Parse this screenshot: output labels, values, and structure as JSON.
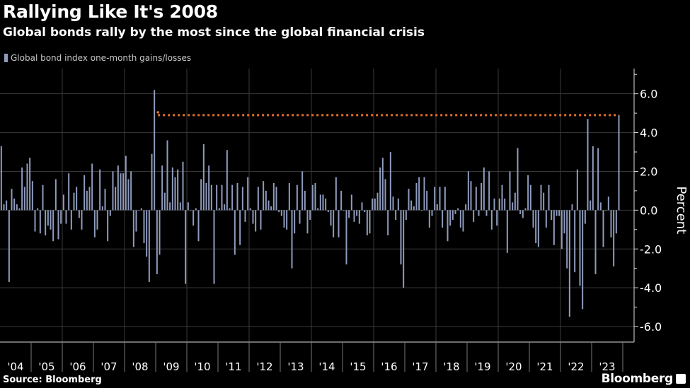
{
  "header": {
    "title": "Rallying Like It's 2008",
    "subtitle": "Global bonds rally by the most since the global financial crisis"
  },
  "footer": {
    "source": "Source: Bloomberg",
    "brand": "Bloomberg"
  },
  "colors": {
    "background": "#000000",
    "bars": "#8f9bbd",
    "reference_line": "#e8702a",
    "grid": "#3a3a3a"
  },
  "chart_data": {
    "type": "bar",
    "legend": [
      "Global bond index one-month gains/losses"
    ],
    "legend_placement": "top-left",
    "ylabel": "Percent",
    "ylim": [
      -6.8,
      7.3
    ],
    "yticks": [
      "6.0",
      "4.0",
      "2.0",
      "0.0",
      "-2.0",
      "-4.0",
      "-6.0"
    ],
    "ytick_values": [
      6,
      4,
      2,
      0,
      -2,
      -4,
      -6
    ],
    "y_axis_side": "right",
    "grid": true,
    "x_tick_labels": [
      "'04",
      "'05",
      "'06",
      "'07",
      "'08",
      "'09",
      "'10",
      "'11",
      "'12",
      "'13",
      "'14",
      "'15",
      "'16",
      "'17",
      "'18",
      "'19",
      "'20",
      "'21",
      "'22",
      "'23"
    ],
    "frequency": "monthly",
    "values_by_year": {
      "2004": [
        3.3,
        0.3,
        0.5,
        -3.7,
        1.1,
        0.6,
        0.3,
        0.1,
        2.2,
        1.2,
        2.4,
        2.7
      ],
      "2005": [
        1.5,
        -1.1,
        0.1,
        -1.2,
        1.3,
        -1.3,
        -0.8,
        -1.0,
        -1.6,
        1.6,
        -1.5,
        -0.7
      ],
      "2006": [
        0.8,
        -0.7,
        1.9,
        -1.0,
        0.9,
        1.2,
        -0.4,
        -1.0,
        1.8,
        1.0,
        1.2,
        2.4
      ],
      "2007": [
        -1.4,
        -1.0,
        2.1,
        0.2,
        1.1,
        -1.6,
        -0.3,
        2.0,
        1.2,
        2.3,
        1.9,
        1.9
      ],
      "2008": [
        2.8,
        1.6,
        2.0,
        -1.9,
        -1.1,
        0.0,
        0.1,
        -1.7,
        -2.4,
        -3.7,
        2.9,
        6.2
      ],
      "2009": [
        -3.3,
        -2.3,
        2.3,
        0.9,
        3.6,
        0.4,
        2.2,
        1.7,
        2.1,
        0.4,
        2.5,
        -3.8
      ],
      "2010": [
        0.4,
        0.0,
        -0.8,
        0.1,
        -1.6,
        1.6,
        3.4,
        1.4,
        2.3,
        1.3,
        -3.8,
        1.3
      ],
      "2011": [
        0.1,
        1.3,
        0.3,
        3.1,
        0.1,
        1.3,
        -2.3,
        1.4,
        -1.8,
        1.2,
        -0.6,
        1.7
      ],
      "2012": [
        0.1,
        -0.7,
        -1.1,
        1.2,
        -1.0,
        1.5,
        1.0,
        0.5,
        0.2,
        1.4,
        1.2,
        -0.1
      ],
      "2013": [
        -0.3,
        -0.9,
        -1.0,
        1.4,
        -3.0,
        -1.2,
        1.3,
        -0.7,
        2.0,
        1.0,
        -1.2,
        -0.5
      ],
      "2014": [
        1.3,
        1.4,
        0.1,
        0.8,
        0.8,
        0.6,
        -0.1,
        -0.8,
        -1.4,
        1.7,
        -1.4,
        1.0
      ],
      "2015": [
        0.0,
        -2.8,
        -0.4,
        0.8,
        -0.6,
        -0.3,
        -0.7,
        0.4,
        -0.1,
        -1.3,
        -1.2,
        0.6
      ],
      "2016": [
        0.6,
        0.9,
        2.2,
        2.7,
        1.6,
        -1.3,
        3.0,
        0.7,
        -0.5,
        0.6,
        -2.8,
        -4.0
      ],
      "2017": [
        -0.5,
        1.1,
        0.5,
        0.2,
        1.4,
        1.7,
        0.0,
        1.7,
        1.0,
        -0.9,
        -0.3,
        1.2
      ],
      "2018": [
        0.3,
        1.2,
        -0.9,
        1.2,
        -1.6,
        -0.8,
        -0.5,
        -0.2,
        0.1,
        -0.9,
        -1.1,
        0.3
      ],
      "2019": [
        2.0,
        1.5,
        -0.6,
        1.2,
        -0.3,
        1.4,
        2.2,
        -0.3,
        2.0,
        -1.0,
        0.6,
        -0.8
      ],
      "2020": [
        0.6,
        1.3,
        0.6,
        -2.2,
        2.0,
        0.4,
        0.9,
        3.2,
        -0.2,
        -0.4,
        0.1,
        1.8
      ],
      "2021": [
        1.3,
        -0.9,
        -1.7,
        -1.9,
        1.3,
        0.9,
        -0.9,
        1.3,
        -0.5,
        -1.8,
        -0.3,
        -0.3
      ],
      "2022": [
        -2.0,
        -1.2,
        -3.0,
        -5.5,
        0.3,
        -3.2,
        2.1,
        -3.9,
        -5.1,
        -0.7,
        4.7,
        0.5
      ],
      "2023": [
        3.3,
        -3.3,
        3.2,
        0.4,
        -1.9,
        0.0,
        0.7,
        -1.4,
        -2.9,
        -1.2,
        4.9
      ]
    },
    "reference_line": {
      "value": 4.9,
      "style": "dotted",
      "from": "2008-12",
      "to": "2023-11"
    }
  }
}
